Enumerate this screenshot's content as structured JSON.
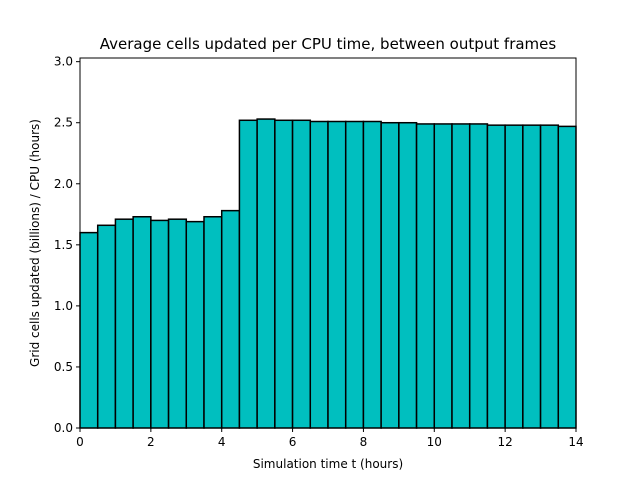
{
  "chart_data": {
    "type": "bar",
    "title": "Average cells updated per CPU time, between output frames",
    "xlabel": "Simulation time t (hours)",
    "ylabel": "Grid cells updated (billions) / CPU (hours)",
    "xlim": [
      0,
      14
    ],
    "ylim": [
      0,
      3.03
    ],
    "xticks": [
      0,
      2,
      4,
      6,
      8,
      10,
      12,
      14
    ],
    "yticks": [
      0.0,
      0.5,
      1.0,
      1.5,
      2.0,
      2.5,
      3.0
    ],
    "xtick_labels": [
      "0",
      "2",
      "4",
      "6",
      "8",
      "10",
      "12",
      "14"
    ],
    "ytick_labels": [
      "0.0",
      "0.5",
      "1.0",
      "1.5",
      "2.0",
      "2.5",
      "3.0"
    ],
    "bar_width": 0.5,
    "x": [
      0,
      0.5,
      1,
      1.5,
      2,
      2.5,
      3,
      3.5,
      4,
      4.5,
      5,
      5.5,
      6,
      6.5,
      7,
      7.5,
      8,
      8.5,
      9,
      9.5,
      10,
      10.5,
      11,
      11.5,
      12,
      12.5,
      13,
      13.5
    ],
    "values": [
      1.6,
      1.66,
      1.71,
      1.73,
      1.7,
      1.71,
      1.69,
      1.73,
      1.78,
      2.52,
      2.53,
      2.52,
      2.52,
      2.51,
      2.51,
      2.51,
      2.51,
      2.5,
      2.5,
      2.49,
      2.49,
      2.49,
      2.49,
      2.48,
      2.48,
      2.48,
      2.48,
      2.47
    ],
    "bar_color": "#00bfbf",
    "edge_color": "#000000",
    "grid": false,
    "legend": "none"
  }
}
